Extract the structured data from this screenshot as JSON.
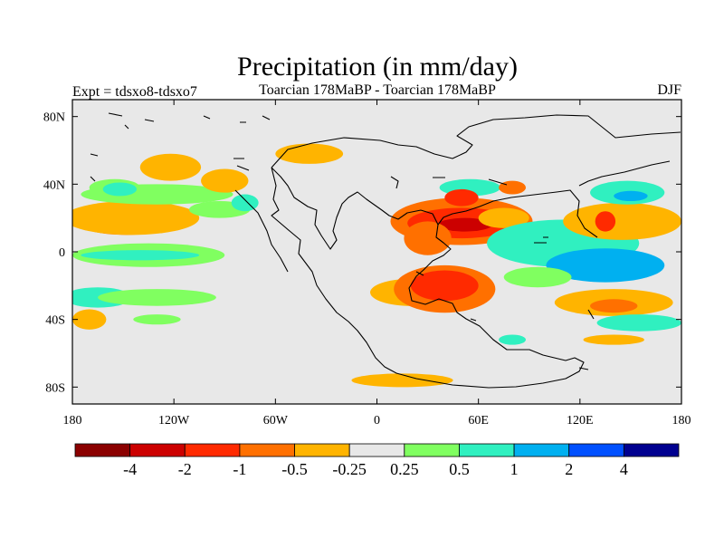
{
  "chart_data": {
    "type": "heatmap",
    "title": "Precipitation (in mm/day)",
    "subtitle_left": "Expt = tdsxo8-tdsxo7",
    "subtitle_center": "Toarcian 178MaBP - Toarcian 178MaBP",
    "subtitle_right": "DJF",
    "x_range": [
      -180,
      180
    ],
    "y_range": [
      -90,
      90
    ],
    "x_ticks": [
      {
        "value": -180,
        "label": "180"
      },
      {
        "value": -120,
        "label": "120W"
      },
      {
        "value": -60,
        "label": "60W"
      },
      {
        "value": 0,
        "label": "0"
      },
      {
        "value": 60,
        "label": "60E"
      },
      {
        "value": 120,
        "label": "120E"
      },
      {
        "value": 180,
        "label": "180"
      }
    ],
    "y_ticks": [
      {
        "value": 80,
        "label": "80N"
      },
      {
        "value": 40,
        "label": "40N"
      },
      {
        "value": 0,
        "label": "0"
      },
      {
        "value": -40,
        "label": "40S"
      },
      {
        "value": -80,
        "label": "80S"
      }
    ],
    "background_color": "#e8e8e8",
    "colorbar": {
      "colors": [
        "#8b0000",
        "#cc0000",
        "#ff2a00",
        "#ff7000",
        "#ffb400",
        "#e8e8e8",
        "#80ff60",
        "#30f0c0",
        "#00b0f0",
        "#0050ff",
        "#000090"
      ],
      "labels": [
        "-4",
        "-2",
        "-1",
        "-0.5",
        "-0.25",
        "0.25",
        "0.5",
        "1",
        "2",
        "4"
      ]
    },
    "regions": [
      {
        "lon": -165,
        "lat": 18,
        "rlon": 18,
        "rlat": 4,
        "level": 4
      },
      {
        "lon": -148,
        "lat": 18,
        "rlon": 30,
        "rlat": 8,
        "level": 3
      },
      {
        "lon": -145,
        "lat": 20,
        "rlon": 40,
        "rlat": 10,
        "level": 4
      },
      {
        "lon": -130,
        "lat": 34,
        "rlon": 45,
        "rlat": 6,
        "level": 6
      },
      {
        "lon": -155,
        "lat": 38,
        "rlon": 15,
        "rlat": 5,
        "level": 6
      },
      {
        "lon": -122,
        "lat": 50,
        "rlon": 18,
        "rlat": 8,
        "level": 4
      },
      {
        "lon": -90,
        "lat": 42,
        "rlon": 14,
        "rlat": 7,
        "level": 4
      },
      {
        "lon": -93,
        "lat": 25,
        "rlon": 18,
        "rlat": 5,
        "level": 6
      },
      {
        "lon": -78,
        "lat": 29,
        "rlon": 8,
        "rlat": 5,
        "level": 7
      },
      {
        "lon": -152,
        "lat": 37,
        "rlon": 10,
        "rlat": 4,
        "level": 7
      },
      {
        "lon": -40,
        "lat": 58,
        "rlon": 20,
        "rlat": 6,
        "level": 4
      },
      {
        "lon": -135,
        "lat": -2,
        "rlon": 45,
        "rlat": 7,
        "level": 6
      },
      {
        "lon": -140,
        "lat": -2,
        "rlon": 35,
        "rlat": 3,
        "level": 7
      },
      {
        "lon": -165,
        "lat": -27,
        "rlon": 20,
        "rlat": 6,
        "level": 7
      },
      {
        "lon": -130,
        "lat": -27,
        "rlon": 35,
        "rlat": 5,
        "level": 6
      },
      {
        "lon": -170,
        "lat": -40,
        "rlon": 10,
        "rlat": 6,
        "level": 4
      },
      {
        "lon": -130,
        "lat": -40,
        "rlon": 14,
        "rlat": 3,
        "level": 6
      },
      {
        "lon": 50,
        "lat": 18,
        "rlon": 42,
        "rlat": 14,
        "level": 3
      },
      {
        "lon": 50,
        "lat": 17,
        "rlon": 32,
        "rlat": 9,
        "level": 2
      },
      {
        "lon": 52,
        "lat": 16,
        "rlon": 16,
        "rlat": 4,
        "level": 1
      },
      {
        "lon": 30,
        "lat": 8,
        "rlon": 14,
        "rlat": 10,
        "level": 3
      },
      {
        "lon": 75,
        "lat": 20,
        "rlon": 15,
        "rlat": 6,
        "level": 4
      },
      {
        "lon": 55,
        "lat": 38,
        "rlon": 18,
        "rlat": 5,
        "level": 7
      },
      {
        "lon": 50,
        "lat": 32,
        "rlon": 10,
        "rlat": 5,
        "level": 2
      },
      {
        "lon": 20,
        "lat": -24,
        "rlon": 24,
        "rlat": 8,
        "level": 4
      },
      {
        "lon": 40,
        "lat": -22,
        "rlon": 30,
        "rlat": 14,
        "level": 3
      },
      {
        "lon": 40,
        "lat": -20,
        "rlon": 20,
        "rlat": 9,
        "level": 2
      },
      {
        "lon": 110,
        "lat": 5,
        "rlon": 45,
        "rlat": 14,
        "level": 7
      },
      {
        "lon": 135,
        "lat": -8,
        "rlon": 35,
        "rlat": 10,
        "level": 8
      },
      {
        "lon": 95,
        "lat": -15,
        "rlon": 20,
        "rlat": 6,
        "level": 6
      },
      {
        "lon": 155,
        "lat": 18,
        "rlon": 25,
        "rlat": 6,
        "level": 3
      },
      {
        "lon": 145,
        "lat": 18,
        "rlon": 35,
        "rlat": 11,
        "level": 4
      },
      {
        "lon": 135,
        "lat": 18,
        "rlon": 6,
        "rlat": 6,
        "level": 2
      },
      {
        "lon": 148,
        "lat": 35,
        "rlon": 22,
        "rlat": 7,
        "level": 7
      },
      {
        "lon": 150,
        "lat": 33,
        "rlon": 10,
        "rlat": 3,
        "level": 8
      },
      {
        "lon": 140,
        "lat": -30,
        "rlon": 35,
        "rlat": 8,
        "level": 4
      },
      {
        "lon": 140,
        "lat": -32,
        "rlon": 14,
        "rlat": 4,
        "level": 3
      },
      {
        "lon": 155,
        "lat": -42,
        "rlon": 25,
        "rlat": 5,
        "level": 7
      },
      {
        "lon": 140,
        "lat": -52,
        "rlon": 18,
        "rlat": 3,
        "level": 4
      },
      {
        "lon": 15,
        "lat": -76,
        "rlon": 30,
        "rlat": 4,
        "level": 4
      },
      {
        "lon": 80,
        "lat": -52,
        "rlon": 8,
        "rlat": 3,
        "level": 7
      },
      {
        "lon": 80,
        "lat": 38,
        "rlon": 8,
        "rlat": 4,
        "level": 3
      }
    ]
  }
}
